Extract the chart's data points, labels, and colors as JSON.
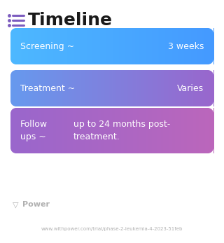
{
  "title": "Timeline",
  "bg_color": "#ffffff",
  "title_color": "#1a1a1a",
  "title_fontsize": 18,
  "icon_color": "#7c5cbf",
  "boxes": [
    {
      "label": "Screening ~",
      "value": "3 weeks",
      "color_left": "#4db8ff",
      "color_right": "#4499ff",
      "text_color": "#ffffff",
      "fontsize": 9,
      "multiline": false,
      "value_x_right": true
    },
    {
      "label": "Treatment ~",
      "value": "Varies",
      "color_left": "#6699ee",
      "color_right": "#9966cc",
      "text_color": "#ffffff",
      "fontsize": 9,
      "multiline": false,
      "value_x_right": true
    },
    {
      "label": "Follow\nups ~",
      "value": "up to 24 months post-\ntreatment.",
      "color_left": "#9966cc",
      "color_right": "#bb66bb",
      "text_color": "#ffffff",
      "fontsize": 9,
      "multiline": true,
      "value_x_right": false
    }
  ],
  "footer_logo_text": "Power",
  "footer_url": "www.withpower.com/trial/phase-2-leukemia-4-2023-51feb",
  "footer_color": "#b0b0b0",
  "footer_fontsize": 5.0,
  "footer_logo_fontsize": 8
}
